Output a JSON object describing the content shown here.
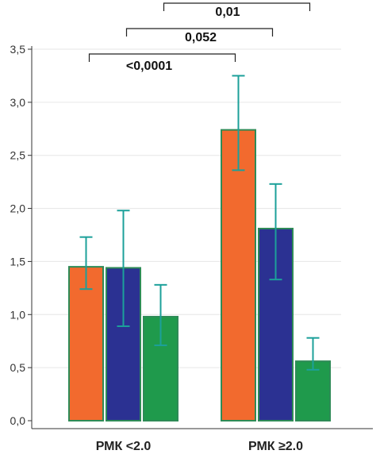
{
  "chart_data": {
    "type": "bar",
    "categories": [
      "РМК <2.0",
      "РМК ≥2.0"
    ],
    "series": [
      {
        "values": [
          1.45,
          2.74
        ],
        "error_low": [
          1.24,
          2.36
        ],
        "error_high": [
          1.73,
          3.25
        ],
        "color": "#f26a2e"
      },
      {
        "values": [
          1.44,
          1.81
        ],
        "error_low": [
          0.89,
          1.33
        ],
        "error_high": [
          1.98,
          2.23
        ],
        "color": "#2b3192"
      },
      {
        "values": [
          0.98,
          0.56
        ],
        "error_low": [
          0.71,
          0.48
        ],
        "error_high": [
          1.28,
          0.78
        ],
        "color": "#1f9a4c"
      }
    ],
    "ylim": [
      0,
      3.5
    ],
    "yticks": [
      "0,0",
      "0,5",
      "1,0",
      "1,5",
      "2,0",
      "2,5",
      "3,0",
      "3,5"
    ],
    "yticks_values": [
      0,
      0.5,
      1.0,
      1.5,
      2.0,
      2.5,
      3.0,
      3.5
    ],
    "grid": true,
    "error_bar_color": "#1ca09a",
    "bar_outline_color": "#2e8b57",
    "significance": [
      {
        "label": "<0,0001",
        "from": {
          "category": 0,
          "series": 0
        },
        "to": {
          "category": 1,
          "series": 0
        }
      },
      {
        "label": "0,052",
        "from": {
          "category": 0,
          "series": 1
        },
        "to": {
          "category": 1,
          "series": 1
        }
      },
      {
        "label": "0,01",
        "from": {
          "category": 0,
          "series": 2
        },
        "to": {
          "category": 1,
          "series": 2
        }
      }
    ]
  }
}
